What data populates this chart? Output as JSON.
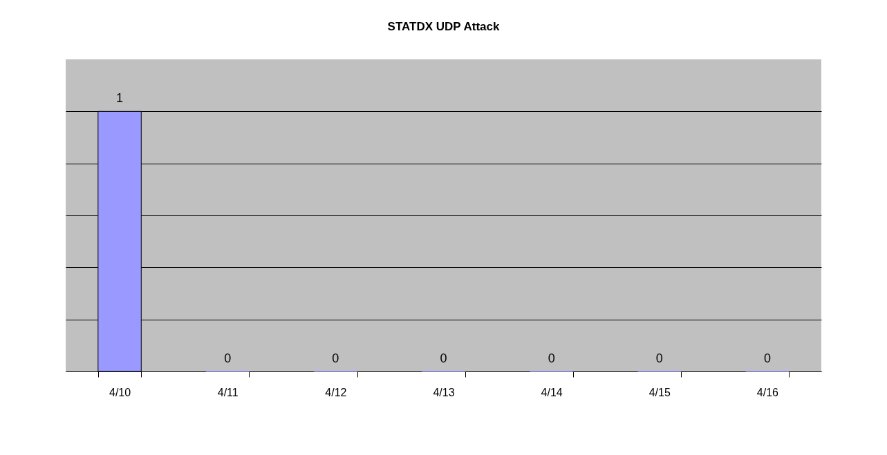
{
  "chart_data": {
    "type": "bar",
    "title": "STATDX UDP Attack",
    "categories": [
      "4/10",
      "4/11",
      "4/12",
      "4/13",
      "4/14",
      "4/15",
      "4/16"
    ],
    "values": [
      1,
      0,
      0,
      0,
      0,
      0,
      0
    ],
    "color": "#9999ff",
    "ylim": [
      0,
      1.2
    ],
    "yticks": [
      {
        "value": 0,
        "label": null
      },
      {
        "value": 0.2,
        "label": null
      },
      {
        "value": 0.4,
        "label": null
      },
      {
        "value": 0.6,
        "label": null
      },
      {
        "value": 0.8,
        "label": null
      },
      {
        "value": 1.0,
        "label": null
      }
    ],
    "grid": "y",
    "tick_labels": "x",
    "data_labels": true
  }
}
